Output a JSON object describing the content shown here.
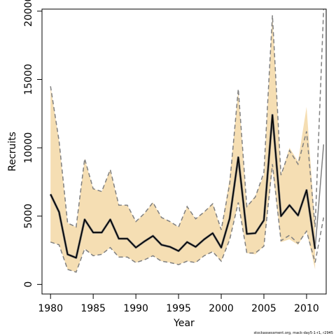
{
  "chart_data": {
    "type": "line",
    "xlabel": "Year",
    "ylabel": "Recruits",
    "xlim": [
      1979,
      2012.3
    ],
    "ylim": [
      -700,
      20150
    ],
    "x_ticks": [
      1980,
      1985,
      1990,
      1995,
      2000,
      2005,
      2010
    ],
    "y_ticks": [
      0,
      5000,
      10000,
      15000,
      20000
    ],
    "band_color": "#f5deb3",
    "line_color": "#000000",
    "dashed_color": "#808080",
    "x": [
      1980,
      1981,
      1982,
      1983,
      1984,
      1985,
      1986,
      1987,
      1988,
      1989,
      1990,
      1991,
      1992,
      1993,
      1994,
      1995,
      1996,
      1997,
      1998,
      1999,
      2000,
      2001,
      2002,
      2003,
      2004,
      2005,
      2006,
      2007,
      2008,
      2009,
      2010,
      2011
    ],
    "series": [
      {
        "values": [
          6600,
          5300,
          2200,
          1950,
          4750,
          3800,
          3800,
          4750,
          3350,
          3350,
          2700,
          3150,
          3550,
          2900,
          2750,
          2450,
          3100,
          2750,
          3300,
          3750,
          2700,
          4850,
          9300,
          3700,
          3750,
          4700,
          12400,
          5000,
          5800,
          5050,
          6900,
          2600
        ]
      }
    ],
    "upper": [
      14500,
      10500,
      4500,
      4200,
      9200,
      7000,
      6800,
      8400,
      5800,
      5800,
      4600,
      5200,
      6000,
      4900,
      4600,
      4200,
      5700,
      4800,
      5300,
      5900,
      4000,
      7800,
      14200,
      5700,
      6500,
      8000,
      19700,
      8000,
      10000,
      9000,
      13000,
      4200
    ],
    "lower": [
      3100,
      2900,
      1100,
      900,
      2600,
      2100,
      2200,
      2700,
      2000,
      2000,
      1600,
      1800,
      2100,
      1700,
      1600,
      1450,
      1700,
      1600,
      2100,
      2400,
      1700,
      3300,
      6000,
      2300,
      2200,
      2800,
      8500,
      3100,
      3300,
      2900,
      3900,
      1100
    ],
    "upper_dashed": [
      14500,
      10500,
      4500,
      4200,
      9200,
      7000,
      6800,
      8400,
      5800,
      5800,
      4600,
      5200,
      6000,
      4900,
      4600,
      4200,
      5700,
      4800,
      5300,
      5900,
      4000,
      7400,
      14300,
      5700,
      6400,
      8200,
      19700,
      8000,
      9800,
      8800,
      11200,
      4200
    ],
    "lower_dashed": [
      3100,
      2900,
      1100,
      900,
      2600,
      2100,
      2200,
      2700,
      2000,
      2000,
      1600,
      1800,
      2100,
      1700,
      1600,
      1450,
      1700,
      1600,
      2100,
      2400,
      1700,
      3300,
      6000,
      2300,
      2300,
      2800,
      8800,
      3200,
      3600,
      3000,
      3900,
      1600
    ],
    "extension": {
      "x": [
        2011,
        2012
      ],
      "median": [
        2600,
        10250
      ],
      "upper": [
        4200,
        20150
      ],
      "lower": [
        1600,
        4900
      ]
    },
    "footnote": "stockassessment.org, mack-day5-1-r1, r2945"
  }
}
